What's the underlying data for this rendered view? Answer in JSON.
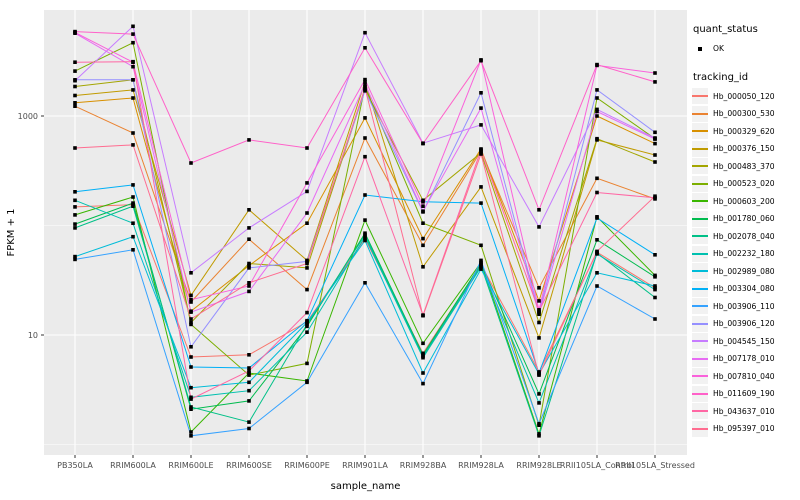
{
  "chart_data": {
    "type": "line",
    "xlabel": "sample_name",
    "ylabel": "FPKM + 1",
    "y_scale": "log10",
    "ylim": [
      0.8,
      9500
    ],
    "grid": "on",
    "legend_position": "right",
    "panel_bg": "#EBEBEB",
    "gridline_color": "#FFFFFF",
    "tick_text_color": "#4D4D4D",
    "point_color": "#000000",
    "y_ticks": [
      {
        "label": "1000",
        "value": 1000
      },
      {
        "label": "10",
        "value": 10
      }
    ],
    "y_minor_gridlines": [
      1,
      100
    ],
    "categories": [
      "PB350LA",
      "RRIM600LA",
      "RRIM600LE",
      "RRIM600SE",
      "RRIM600PE",
      "RRIM901LA",
      "RRIM928BA",
      "RRIM928LA",
      "RRIM928LE",
      "RRII105LA_Control",
      "RRII105LA_Stressed"
    ],
    "series": [
      {
        "name": "Hb_000050_120",
        "color": "#F8766D",
        "values": [
          148,
          155,
          6.3,
          6.6,
          13.2,
          76,
          6.8,
          44,
          4.6,
          57,
          27
        ]
      },
      {
        "name": "Hb_000300_530",
        "color": "#EA8331",
        "values": [
          1230,
          700,
          20,
          75,
          26,
          630,
          66,
          480,
          27,
          270,
          175
        ]
      },
      {
        "name": "Hb_000329_620",
        "color": "#D89000",
        "values": [
          1320,
          1460,
          16.5,
          43,
          105,
          960,
          76,
          500,
          20.5,
          1000,
          560
        ]
      },
      {
        "name": "Hb_000376_150",
        "color": "#C09B00",
        "values": [
          1540,
          1730,
          23,
          139,
          48,
          2050,
          42,
          225,
          9.4,
          605,
          440
        ]
      },
      {
        "name": "Hb_000483_370",
        "color": "#A3A500",
        "values": [
          1860,
          2140,
          13,
          45,
          41,
          1750,
          170,
          460,
          13,
          620,
          380
        ]
      },
      {
        "name": "Hb_000523_020",
        "color": "#7CAE00",
        "values": [
          2570,
          4670,
          12.5,
          4.3,
          5.5,
          1850,
          105,
          66,
          1.5,
          1460,
          620
        ]
      },
      {
        "name": "Hb_000603_200",
        "color": "#39B600",
        "values": [
          125,
          182,
          1.3,
          4.5,
          3.8,
          112,
          8.4,
          46,
          1.25,
          120,
          35
        ]
      },
      {
        "name": "Hb_001780_060",
        "color": "#00BB4E",
        "values": [
          103,
          160,
          2.1,
          2.5,
          12,
          85,
          6.6,
          45,
          2.9,
          74,
          34
        ]
      },
      {
        "name": "Hb_002078_040",
        "color": "#00C087",
        "values": [
          95,
          150,
          2.2,
          1.6,
          12.5,
          82,
          6.4,
          43,
          1.2,
          56,
          22
        ]
      },
      {
        "name": "Hb_002232_180",
        "color": "#00C0AF",
        "values": [
          170,
          105,
          2.7,
          3.1,
          10.6,
          79,
          6.2,
          42,
          2.4,
          55,
          26
        ]
      },
      {
        "name": "Hb_002989_080",
        "color": "#00BCD8",
        "values": [
          52,
          79,
          3.3,
          3.7,
          13,
          73,
          4.5,
          40,
          4.4,
          37,
          28
        ]
      },
      {
        "name": "Hb_003304_080",
        "color": "#00B0F6",
        "values": [
          203,
          235,
          5.1,
          5.0,
          13.5,
          190,
          165,
          160,
          4.5,
          117,
          54
        ]
      },
      {
        "name": "Hb_003906_110",
        "color": "#35A2FF",
        "values": [
          49,
          60,
          1.2,
          1.4,
          3.7,
          30,
          3.6,
          48,
          1.55,
          28,
          14
        ]
      },
      {
        "name": "Hb_003906_120",
        "color": "#9590FF",
        "values": [
          2140,
          2140,
          7.8,
          41,
          47,
          1700,
          133,
          1630,
          16,
          1730,
          710
        ]
      },
      {
        "name": "Hb_004545_150",
        "color": "#C77CFF",
        "values": [
          2100,
          6600,
          37,
          95,
          205,
          5760,
          565,
          830,
          97,
          1150,
          630
        ]
      },
      {
        "name": "Hb_007178_010",
        "color": "#E76BF3",
        "values": [
          5700,
          2820,
          16.2,
          25,
          130,
          1950,
          135,
          1180,
          15.5,
          1100,
          615
        ]
      },
      {
        "name": "Hb_007810_040",
        "color": "#FA62DB",
        "values": [
          5800,
          3100,
          21,
          28,
          245,
          2150,
          150,
          3250,
          17,
          2900,
          2470
        ]
      },
      {
        "name": "Hb_011609_190",
        "color": "#FF61C9",
        "values": [
          5900,
          5600,
          372,
          605,
          510,
          4200,
          560,
          3200,
          139,
          2950,
          2050
        ]
      },
      {
        "name": "Hb_043637_010",
        "color": "#FF67A4",
        "values": [
          3100,
          3130,
          2.6,
          4.7,
          16,
          425,
          15.2,
          490,
          16.5,
          200,
          179
        ]
      },
      {
        "name": "Hb_095397_010",
        "color": "#FF6C90",
        "values": [
          510,
          545,
          14,
          30,
          45,
          1800,
          15,
          450,
          4.3,
          58,
          185
        ]
      }
    ],
    "legend": {
      "quant_status_title": "quant_status",
      "quant_status_items": [
        {
          "label": "OK"
        }
      ],
      "tracking_id_title": "tracking_id"
    }
  }
}
